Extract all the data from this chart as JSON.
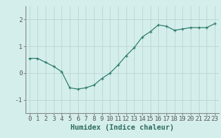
{
  "x": [
    0,
    1,
    2,
    3,
    4,
    5,
    6,
    7,
    8,
    9,
    10,
    11,
    12,
    13,
    14,
    15,
    16,
    17,
    18,
    19,
    20,
    21,
    22,
    23
  ],
  "y": [
    0.55,
    0.55,
    0.4,
    0.25,
    0.05,
    -0.55,
    -0.6,
    -0.55,
    -0.45,
    -0.2,
    0.0,
    0.3,
    0.65,
    0.95,
    1.35,
    1.55,
    1.8,
    1.75,
    1.6,
    1.65,
    1.7,
    1.7,
    1.7,
    1.85
  ],
  "line_color": "#2e7d6e",
  "marker_color": "#2e7d6e",
  "bg_color": "#d4eeeb",
  "grid_color": "#bcd8d5",
  "axis_color": "#888888",
  "xlabel": "Humidex (Indice chaleur)",
  "ylim": [
    -1.5,
    2.5
  ],
  "xlim": [
    -0.5,
    23.5
  ],
  "yticks": [
    -1,
    0,
    1,
    2
  ],
  "xticks": [
    0,
    1,
    2,
    3,
    4,
    5,
    6,
    7,
    8,
    9,
    10,
    11,
    12,
    13,
    14,
    15,
    16,
    17,
    18,
    19,
    20,
    21,
    22,
    23
  ],
  "tick_fontsize": 6.5,
  "label_fontsize": 7.5
}
